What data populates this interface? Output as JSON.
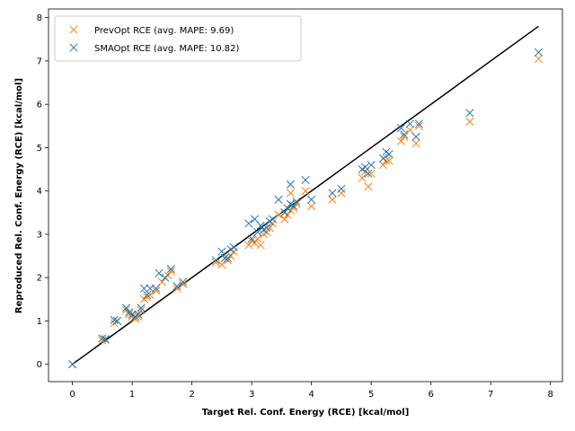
{
  "chart_data": {
    "type": "scatter",
    "xlabel": "Target Rel. Conf. Energy (RCE) [kcal/mol]",
    "ylabel": "Reproduced Rel. Conf. Energy (RCE) [kcal/mol]",
    "xlim": [
      -0.4,
      8.2
    ],
    "ylim": [
      -0.4,
      8.2
    ],
    "xticks": [
      "0",
      "1",
      "2",
      "3",
      "4",
      "5",
      "6",
      "7",
      "8"
    ],
    "yticks": [
      "0",
      "1",
      "2",
      "3",
      "4",
      "5",
      "6",
      "7",
      "8"
    ],
    "grid": false,
    "legend_position": "top-left",
    "reference_line": {
      "x": [
        0,
        7.8
      ],
      "y": [
        0,
        7.8
      ],
      "color": "#000000"
    },
    "series": [
      {
        "name": "PrevOpt RCE (avg. MAPE: 9.69)",
        "color": "#ff7f0e",
        "marker": "x",
        "points": [
          [
            0,
            0
          ],
          [
            0.5,
            0.55
          ],
          [
            0.55,
            0.57
          ],
          [
            0.7,
            0.95
          ],
          [
            0.75,
            1.0
          ],
          [
            0.9,
            1.25
          ],
          [
            0.95,
            1.15
          ],
          [
            1.0,
            1.1
          ],
          [
            1.05,
            1.05
          ],
          [
            1.1,
            1.1
          ],
          [
            1.15,
            1.25
          ],
          [
            1.2,
            1.5
          ],
          [
            1.25,
            1.55
          ],
          [
            1.3,
            1.6
          ],
          [
            1.4,
            1.7
          ],
          [
            1.5,
            1.9
          ],
          [
            1.6,
            2.05
          ],
          [
            1.65,
            2.15
          ],
          [
            1.75,
            1.75
          ],
          [
            1.85,
            1.85
          ],
          [
            2.4,
            2.35
          ],
          [
            2.5,
            2.3
          ],
          [
            2.55,
            2.45
          ],
          [
            2.6,
            2.4
          ],
          [
            2.65,
            2.5
          ],
          [
            2.7,
            2.6
          ],
          [
            2.95,
            2.75
          ],
          [
            3.0,
            2.85
          ],
          [
            3.05,
            2.8
          ],
          [
            3.1,
            2.9
          ],
          [
            3.15,
            2.75
          ],
          [
            3.2,
            3.0
          ],
          [
            3.25,
            3.05
          ],
          [
            3.3,
            3.15
          ],
          [
            3.35,
            3.25
          ],
          [
            3.45,
            3.45
          ],
          [
            3.55,
            3.35
          ],
          [
            3.6,
            3.45
          ],
          [
            3.65,
            3.55
          ],
          [
            3.7,
            3.6
          ],
          [
            3.75,
            3.7
          ],
          [
            3.65,
            3.95
          ],
          [
            3.9,
            4.0
          ],
          [
            4.0,
            3.65
          ],
          [
            4.35,
            3.8
          ],
          [
            4.5,
            3.95
          ],
          [
            4.85,
            4.3
          ],
          [
            4.9,
            4.45
          ],
          [
            4.95,
            4.1
          ],
          [
            5.0,
            4.4
          ],
          [
            5.2,
            4.6
          ],
          [
            5.25,
            4.7
          ],
          [
            5.3,
            4.7
          ],
          [
            5.5,
            5.15
          ],
          [
            5.55,
            5.25
          ],
          [
            5.65,
            5.4
          ],
          [
            5.75,
            5.1
          ],
          [
            5.8,
            5.5
          ],
          [
            6.65,
            5.6
          ],
          [
            7.8,
            7.05
          ]
        ]
      },
      {
        "name": "SMAOpt RCE (avg. MAPE: 10.82)",
        "color": "#1f77b4",
        "marker": "x",
        "points": [
          [
            0,
            0
          ],
          [
            0.5,
            0.6
          ],
          [
            0.55,
            0.58
          ],
          [
            0.7,
            1.02
          ],
          [
            0.75,
            1.0
          ],
          [
            0.9,
            1.3
          ],
          [
            0.95,
            1.2
          ],
          [
            1.0,
            1.15
          ],
          [
            1.05,
            1.1
          ],
          [
            1.1,
            1.15
          ],
          [
            1.15,
            1.3
          ],
          [
            1.2,
            1.75
          ],
          [
            1.25,
            1.6
          ],
          [
            1.3,
            1.75
          ],
          [
            1.4,
            1.75
          ],
          [
            1.45,
            2.1
          ],
          [
            1.55,
            2.0
          ],
          [
            1.65,
            2.2
          ],
          [
            1.75,
            1.8
          ],
          [
            1.85,
            1.9
          ],
          [
            2.4,
            2.4
          ],
          [
            2.5,
            2.6
          ],
          [
            2.55,
            2.45
          ],
          [
            2.6,
            2.45
          ],
          [
            2.65,
            2.65
          ],
          [
            2.7,
            2.7
          ],
          [
            2.95,
            3.25
          ],
          [
            3.0,
            2.9
          ],
          [
            3.05,
            3.35
          ],
          [
            3.1,
            3.05
          ],
          [
            3.15,
            3.2
          ],
          [
            3.2,
            3.1
          ],
          [
            3.25,
            3.15
          ],
          [
            3.3,
            3.3
          ],
          [
            3.35,
            3.35
          ],
          [
            3.45,
            3.8
          ],
          [
            3.55,
            3.5
          ],
          [
            3.6,
            3.6
          ],
          [
            3.65,
            4.15
          ],
          [
            3.7,
            3.65
          ],
          [
            3.75,
            3.75
          ],
          [
            3.65,
            3.7
          ],
          [
            3.9,
            4.25
          ],
          [
            4.0,
            3.8
          ],
          [
            4.35,
            3.95
          ],
          [
            4.5,
            4.05
          ],
          [
            4.85,
            4.5
          ],
          [
            4.9,
            4.55
          ],
          [
            4.95,
            4.4
          ],
          [
            5.0,
            4.6
          ],
          [
            5.2,
            4.75
          ],
          [
            5.25,
            4.9
          ],
          [
            5.3,
            4.85
          ],
          [
            5.5,
            5.45
          ],
          [
            5.55,
            5.3
          ],
          [
            5.65,
            5.55
          ],
          [
            5.75,
            5.25
          ],
          [
            5.8,
            5.55
          ],
          [
            6.65,
            5.8
          ],
          [
            7.8,
            7.2
          ]
        ]
      }
    ]
  }
}
